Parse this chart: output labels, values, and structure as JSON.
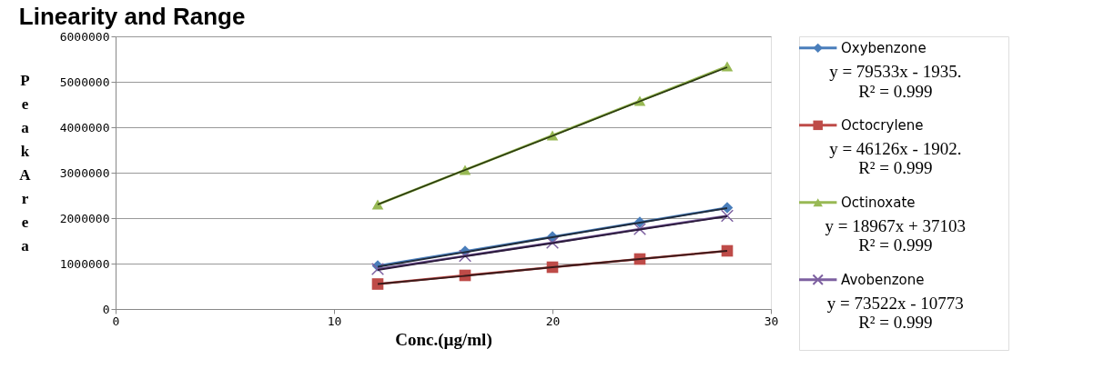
{
  "chart_data": {
    "type": "line",
    "title": "Linearity and Range",
    "xlabel": "Conc.(µg/ml)",
    "ylabel": "Peak Area",
    "x": [
      12,
      16,
      20,
      24,
      28
    ],
    "series": [
      {
        "name": "Oxybenzone",
        "color": "#4a7ebb",
        "marker": "diamond",
        "values": [
          950000,
          1270000,
          1590000,
          1910000,
          2230000
        ]
      },
      {
        "name": "Octocrylene",
        "color": "#be4b48",
        "marker": "square",
        "values": [
          550000,
          740000,
          920000,
          1100000,
          1280000
        ]
      },
      {
        "name": "Octinoxate",
        "color": "#98b954",
        "marker": "triangle",
        "values": [
          2300000,
          3060000,
          3820000,
          4580000,
          5340000
        ]
      },
      {
        "name": "Avobenzone",
        "color": "#7d60a0",
        "marker": "cross",
        "values": [
          880000,
          1170000,
          1460000,
          1760000,
          2050000
        ]
      },
      {
        "type": "line",
        "color": "#1f2a3a",
        "marker": "none",
        "values": [
          930000,
          1250000,
          1580000,
          1900000,
          2220000
        ]
      },
      {
        "type": "line",
        "color": "#3a1a1a",
        "marker": "none",
        "values": [
          550000,
          730000,
          920000,
          1100000,
          1280000
        ]
      },
      {
        "type": "line",
        "color": "#2a3a10",
        "marker": "none",
        "values": [
          2300000,
          3060000,
          3810000,
          4570000,
          5320000
        ]
      },
      {
        "type": "line",
        "color": "#2a1a3a",
        "marker": "none",
        "values": [
          860000,
          1160000,
          1450000,
          1750000,
          2040000
        ]
      }
    ],
    "xlim": [
      0,
      30
    ],
    "xticks": [
      0,
      10,
      20,
      30
    ],
    "ylim": [
      0,
      6000000
    ],
    "yticks": [
      0,
      1000000,
      2000000,
      3000000,
      4000000,
      5000000,
      6000000
    ],
    "grid": "y",
    "legend": "right",
    "annotations": [
      "y = 79533x - 1935.",
      "R² = 0.999",
      "y = 46126x - 1902.",
      "R² = 0.999",
      "y = 18967x + 37103",
      "R² = 0.999",
      "y = 73522x - 10773",
      "R² = 0.999"
    ]
  }
}
